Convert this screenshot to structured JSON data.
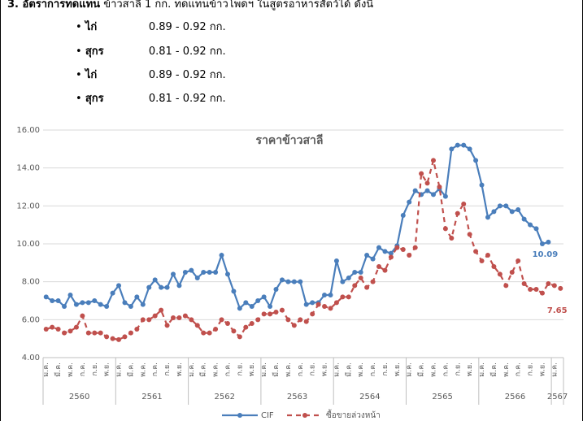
{
  "header": {
    "lead": "3. อัตราการทดแทน",
    "text": "ข้าวสาลี 1 กก. ทดแทนข้าวโพดฯ ในสูตรอาหารสัตว์ได้ ดังนี้"
  },
  "bullets": [
    {
      "animal": "ไก่",
      "ratio": "0.89 - 0.92 กก."
    },
    {
      "animal": "สุกร",
      "ratio": "0.81 - 0.92 กก."
    },
    {
      "animal": "ไก่",
      "ratio": "0.89 - 0.92 กก."
    },
    {
      "animal": "สุกร",
      "ratio": "0.81 - 0.92 กก."
    }
  ],
  "chart_data": {
    "type": "line",
    "title": "ราคาข้าวสาลี",
    "categories": [
      "ม.ค.",
      null,
      "มี.ค.",
      null,
      "พ.ค.",
      null,
      "ก.ค.",
      null,
      "ก.ย.",
      null,
      "พ.ย.",
      null,
      "ม.ค.",
      null,
      "มี.ค.",
      null,
      "พ.ค.",
      null,
      "ก.ค.",
      null,
      "ก.ย.",
      null,
      "พ.ย.",
      null,
      "ม.ค.",
      null,
      "มี.ค.",
      null,
      "พ.ค.",
      null,
      "ก.ค.",
      null,
      "ก.ย.",
      null,
      "พ.ย.",
      null,
      "ม.ค.",
      null,
      "มี.ค.",
      null,
      "พ.ค.",
      null,
      "ก.ค.",
      null,
      "ก.ย.",
      null,
      "พ.ย.",
      null,
      "ม.ค.",
      null,
      "มี.ค.",
      null,
      "พ.ค.",
      null,
      "ก.ค.",
      null,
      "ก.ย.",
      null,
      "พ.ย.",
      null,
      "ม.ค.",
      null,
      "มี.ค.",
      null,
      "พ.ค.",
      null,
      "ก.ค.",
      null,
      "ก.ย.",
      null,
      "พ.ย.",
      null,
      "ม.ค.",
      null,
      "มี.ค.",
      null,
      "พ.ค.",
      null,
      "ก.ค.",
      null,
      "ก.ย.",
      null,
      "พ.ย.",
      null,
      "ม.ค.",
      null
    ],
    "years": [
      "2560",
      "2561",
      "2562",
      "2563",
      "2564",
      "2565",
      "2566",
      "2567"
    ],
    "series": [
      {
        "name": "CIF",
        "color": "#4a7ebb",
        "dashed": false,
        "values": [
          7.2,
          7.0,
          7.0,
          6.7,
          7.3,
          6.8,
          6.9,
          6.9,
          7.0,
          6.8,
          6.7,
          7.4,
          7.8,
          6.9,
          6.7,
          7.2,
          6.8,
          7.7,
          8.1,
          7.7,
          7.7,
          8.4,
          7.8,
          8.5,
          8.6,
          8.2,
          8.5,
          8.5,
          8.5,
          9.4,
          8.4,
          7.5,
          6.6,
          6.9,
          6.7,
          7.0,
          7.2,
          6.7,
          7.6,
          8.1,
          8.0,
          8.0,
          8.0,
          6.8,
          6.9,
          6.9,
          7.3,
          7.3,
          9.1,
          8.0,
          8.2,
          8.5,
          8.5,
          9.4,
          9.2,
          9.8,
          9.6,
          9.5,
          9.9,
          11.5,
          12.2,
          12.8,
          12.6,
          12.8,
          12.6,
          12.9,
          12.5,
          15.0,
          15.2,
          15.2,
          15.0,
          14.4,
          13.1,
          11.4,
          11.7,
          12.0,
          12.0,
          11.7,
          11.8,
          11.3,
          11.0,
          10.8,
          10.0,
          10.09,
          null,
          null
        ]
      },
      {
        "name": "ซื้อขายล่วงหน้า",
        "color": "#c0504d",
        "dashed": true,
        "values": [
          5.5,
          5.6,
          5.5,
          5.3,
          5.4,
          5.6,
          6.2,
          5.3,
          5.3,
          5.3,
          5.1,
          5.0,
          4.95,
          5.1,
          5.3,
          5.5,
          6.0,
          6.0,
          6.2,
          6.5,
          5.7,
          6.1,
          6.1,
          6.2,
          6.0,
          5.7,
          5.3,
          5.3,
          5.5,
          6.0,
          5.8,
          5.4,
          5.1,
          5.6,
          5.8,
          6.0,
          6.3,
          6.3,
          6.4,
          6.5,
          6.0,
          5.7,
          6.0,
          5.9,
          6.3,
          6.8,
          6.7,
          6.6,
          6.9,
          7.2,
          7.2,
          7.8,
          8.2,
          7.7,
          8.0,
          8.8,
          8.6,
          9.3,
          9.8,
          9.7,
          9.4,
          9.8,
          13.7,
          13.2,
          14.4,
          13.0,
          10.8,
          10.3,
          11.6,
          12.1,
          10.5,
          9.6,
          9.1,
          9.4,
          8.8,
          8.4,
          7.8,
          8.5,
          9.1,
          7.9,
          7.6,
          7.6,
          7.4,
          7.9,
          7.8,
          7.65
        ]
      }
    ],
    "end_labels": [
      {
        "series": 0,
        "index": 83
      },
      {
        "series": 1,
        "index": 85
      }
    ],
    "ylim": [
      4,
      16
    ],
    "yticks": [
      {
        "value": 4,
        "label": "4.00"
      },
      {
        "value": 6,
        "label": "6.00"
      },
      {
        "value": 8,
        "label": "8.00"
      },
      {
        "value": 10,
        "label": "10.00"
      },
      {
        "value": 12,
        "label": "12.00"
      },
      {
        "value": 14,
        "label": "14.00"
      },
      {
        "value": 16,
        "label": "16.00"
      }
    ],
    "grid": true,
    "legend": "bottom"
  }
}
